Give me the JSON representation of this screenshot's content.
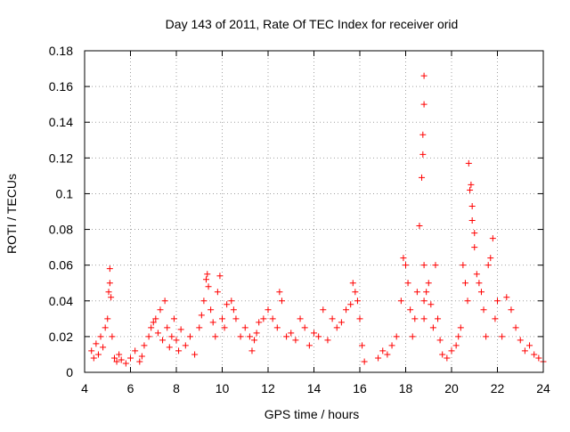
{
  "chart_data": {
    "type": "scatter",
    "title": "Day 143 of 2011, Rate Of TEC Index for receiver orid",
    "xlabel": "GPS time / hours",
    "ylabel": "ROTI / TECUs",
    "xlim": [
      4,
      24
    ],
    "ylim": [
      0,
      0.18
    ],
    "grid": true,
    "marker": "+",
    "color": "#ff0000",
    "xticks": [
      4,
      6,
      8,
      10,
      12,
      14,
      16,
      18,
      20,
      22,
      24
    ],
    "xtick_labels": [
      "4",
      "6",
      "8",
      "10",
      "12",
      "14",
      "16",
      "18",
      "20",
      "22",
      "24"
    ],
    "yticks": [
      0,
      0.02,
      0.04,
      0.06,
      0.08,
      0.1,
      0.12,
      0.14,
      0.16,
      0.18
    ],
    "ytick_labels": [
      "0",
      "0.02",
      "0.04",
      "0.06",
      "0.08",
      "0.1",
      "0.12",
      "0.14",
      "0.16",
      "0.18"
    ],
    "series": [
      {
        "name": "ROTI",
        "x": [
          4.3,
          4.4,
          4.5,
          4.6,
          4.7,
          4.8,
          4.9,
          5.0,
          5.05,
          5.1,
          5.1,
          5.15,
          5.2,
          5.3,
          5.4,
          5.5,
          5.6,
          5.8,
          6.0,
          6.2,
          6.4,
          6.5,
          6.6,
          6.8,
          6.9,
          7.0,
          7.1,
          7.2,
          7.3,
          7.4,
          7.5,
          7.6,
          7.7,
          7.8,
          7.9,
          8.0,
          8.1,
          8.2,
          8.4,
          8.6,
          8.8,
          9.0,
          9.1,
          9.2,
          9.3,
          9.35,
          9.4,
          9.5,
          9.6,
          9.7,
          9.8,
          9.9,
          10.0,
          10.1,
          10.2,
          10.4,
          10.5,
          10.6,
          10.8,
          11.0,
          11.2,
          11.3,
          11.4,
          11.5,
          11.6,
          11.8,
          12.0,
          12.2,
          12.4,
          12.5,
          12.6,
          12.8,
          13.0,
          13.2,
          13.4,
          13.6,
          13.8,
          14.0,
          14.2,
          14.4,
          14.6,
          14.8,
          15.0,
          15.2,
          15.4,
          15.6,
          15.7,
          15.8,
          15.9,
          16.0,
          16.1,
          16.2,
          16.8,
          17.0,
          17.2,
          17.4,
          17.6,
          17.8,
          17.9,
          18.0,
          18.1,
          18.2,
          18.3,
          18.4,
          18.5,
          18.6,
          18.7,
          18.75,
          18.75,
          18.8,
          18.8,
          18.8,
          18.8,
          18.8,
          18.9,
          19.0,
          19.1,
          19.2,
          19.3,
          19.4,
          19.5,
          19.6,
          19.8,
          20.0,
          20.2,
          20.3,
          20.4,
          20.5,
          20.6,
          20.7,
          20.75,
          20.8,
          20.85,
          20.9,
          20.9,
          21.0,
          21.0,
          21.1,
          21.2,
          21.3,
          21.4,
          21.5,
          21.6,
          21.7,
          21.8,
          21.9,
          22.0,
          22.2,
          22.4,
          22.6,
          22.8,
          23.0,
          23.2,
          23.4,
          23.6,
          23.8,
          24.0
        ],
        "y": [
          0.012,
          0.008,
          0.016,
          0.01,
          0.02,
          0.014,
          0.025,
          0.03,
          0.045,
          0.05,
          0.058,
          0.042,
          0.02,
          0.008,
          0.006,
          0.01,
          0.007,
          0.005,
          0.008,
          0.012,
          0.006,
          0.009,
          0.015,
          0.02,
          0.025,
          0.028,
          0.03,
          0.022,
          0.035,
          0.018,
          0.04,
          0.025,
          0.014,
          0.02,
          0.03,
          0.018,
          0.012,
          0.024,
          0.015,
          0.02,
          0.01,
          0.025,
          0.032,
          0.04,
          0.052,
          0.055,
          0.048,
          0.035,
          0.028,
          0.02,
          0.045,
          0.054,
          0.03,
          0.025,
          0.038,
          0.04,
          0.035,
          0.03,
          0.02,
          0.025,
          0.02,
          0.012,
          0.018,
          0.022,
          0.028,
          0.03,
          0.035,
          0.03,
          0.025,
          0.045,
          0.04,
          0.02,
          0.022,
          0.018,
          0.03,
          0.025,
          0.015,
          0.022,
          0.02,
          0.035,
          0.018,
          0.03,
          0.025,
          0.028,
          0.035,
          0.038,
          0.05,
          0.045,
          0.04,
          0.03,
          0.015,
          0.006,
          0.008,
          0.012,
          0.01,
          0.015,
          0.02,
          0.04,
          0.064,
          0.06,
          0.05,
          0.035,
          0.02,
          0.03,
          0.045,
          0.082,
          0.109,
          0.122,
          0.133,
          0.15,
          0.166,
          0.06,
          0.04,
          0.03,
          0.045,
          0.05,
          0.038,
          0.025,
          0.06,
          0.03,
          0.018,
          0.01,
          0.008,
          0.012,
          0.015,
          0.02,
          0.025,
          0.06,
          0.05,
          0.04,
          0.117,
          0.102,
          0.105,
          0.093,
          0.085,
          0.078,
          0.07,
          0.055,
          0.05,
          0.045,
          0.035,
          0.02,
          0.06,
          0.064,
          0.075,
          0.03,
          0.04,
          0.02,
          0.042,
          0.035,
          0.025,
          0.018,
          0.012,
          0.015,
          0.01,
          0.008,
          0.006
        ]
      }
    ]
  }
}
